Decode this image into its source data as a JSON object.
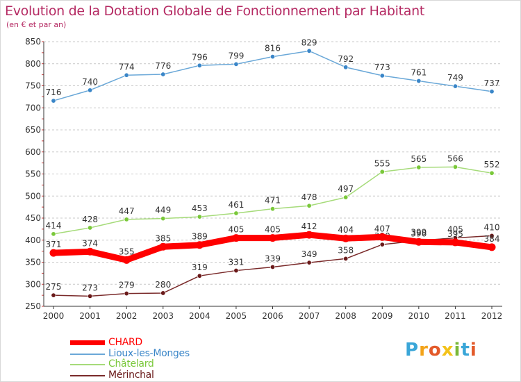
{
  "title": "Evolution de la Dotation Globale de Fonctionnement par Habitant",
  "subtitle": "(en € et par an)",
  "logo": {
    "text": "Proxiti",
    "letters": [
      {
        "ch": "P",
        "color": "#3aa6d8"
      },
      {
        "ch": "r",
        "color": "#f3a31a"
      },
      {
        "ch": "o",
        "color": "#e35a2a"
      },
      {
        "ch": "x",
        "color": "#f3c21a"
      },
      {
        "ch": "i",
        "color": "#7ab83a"
      },
      {
        "ch": "t",
        "color": "#3aa6d8"
      },
      {
        "ch": "i",
        "color": "#e35a2a"
      }
    ]
  },
  "chart_data": {
    "type": "line",
    "title": "Evolution de la Dotation Globale de Fonctionnement par Habitant",
    "subtitle": "(en € et par an)",
    "xlabel": "",
    "ylabel": "",
    "x": [
      "2000",
      "2001",
      "2002",
      "2003",
      "2004",
      "2005",
      "2006",
      "2007",
      "2008",
      "2009",
      "2010",
      "2011",
      "2012"
    ],
    "ylim": [
      250,
      850
    ],
    "yticks": [
      250,
      300,
      350,
      400,
      450,
      500,
      550,
      600,
      650,
      700,
      750,
      800,
      850
    ],
    "grid": "horizontal dashed",
    "legend": "bottom-left",
    "series": [
      {
        "name": "CHARD",
        "color": "#ff0000",
        "emphasis": true,
        "values": [
          371,
          374,
          355,
          385,
          389,
          405,
          405,
          412,
          404,
          407,
          396,
          395,
          384
        ]
      },
      {
        "name": "Lioux-les-Monges",
        "color": "#6aa8d8",
        "marker": "#3a86c8",
        "values": [
          716,
          740,
          774,
          776,
          796,
          799,
          816,
          829,
          792,
          773,
          761,
          749,
          737
        ]
      },
      {
        "name": "Châtelard",
        "color": "#a6db7a",
        "marker": "#7ac83a",
        "values": [
          414,
          428,
          447,
          449,
          453,
          461,
          471,
          478,
          497,
          555,
          565,
          566,
          552
        ]
      },
      {
        "name": "Mérinchal",
        "color": "#7a2a2a",
        "marker": "#6a1a1a",
        "values": [
          275,
          273,
          279,
          280,
          319,
          331,
          339,
          349,
          358,
          390,
          399,
          405,
          410
        ]
      }
    ]
  }
}
